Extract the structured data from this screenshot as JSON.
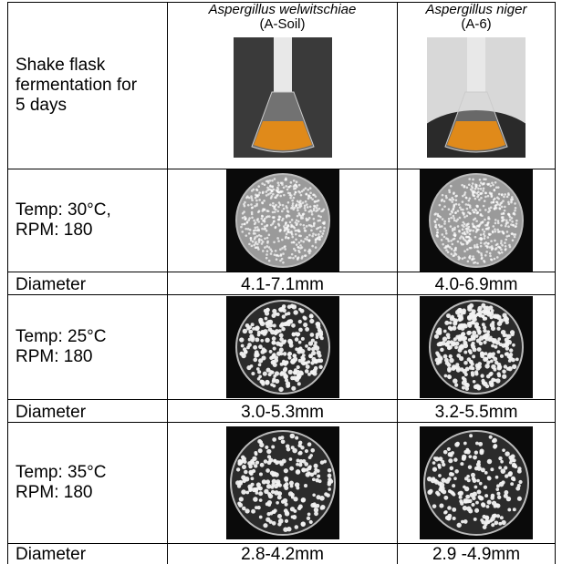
{
  "table": {
    "header": {
      "label": "Shake flask fermentation for 5 days",
      "strains": [
        {
          "species": "Aspergillus welwitschiae",
          "code": "(A-Soil)"
        },
        {
          "species": "Aspergillus niger",
          "code": "(A-6)"
        }
      ]
    },
    "rows": [
      {
        "condition": "Temp: 30°C, RPM: 180",
        "diameter_label": "Diameter",
        "diameters": [
          "4.1-7.1mm",
          "4.0-6.9mm"
        ]
      },
      {
        "condition": "Temp: 25°C RPM: 180",
        "diameter_label": "Diameter",
        "diameters": [
          "3.0-5.3mm",
          "3.2-5.5mm"
        ]
      },
      {
        "condition": "Temp: 35°C RPM: 180",
        "diameter_label": "Diameter",
        "diameters": [
          "2.8-4.2mm",
          "2.9 -4.9mm"
        ]
      }
    ]
  }
}
